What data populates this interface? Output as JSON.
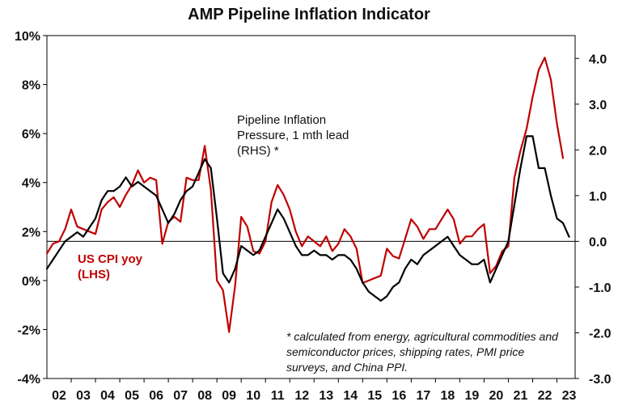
{
  "chart_data": {
    "type": "line",
    "title": "AMP Pipeline Inflation Indicator",
    "x_ticks": [
      "02",
      "03",
      "04",
      "05",
      "06",
      "07",
      "08",
      "09",
      "10",
      "11",
      "12",
      "13",
      "14",
      "15",
      "16",
      "17",
      "18",
      "19",
      "20",
      "21",
      "22",
      "23"
    ],
    "x_range": [
      2002.0,
      2023.75
    ],
    "y_left": {
      "range": [
        -4,
        10
      ],
      "ticks": [
        -4,
        -2,
        0,
        2,
        4,
        6,
        8,
        10
      ],
      "tick_labels": [
        "-4%",
        "-2%",
        "0%",
        "2%",
        "4%",
        "6%",
        "8%",
        "10%"
      ]
    },
    "y_right": {
      "range": [
        -3.0,
        4.5
      ],
      "ticks": [
        -3.0,
        -2.0,
        -1.0,
        0.0,
        1.0,
        2.0,
        3.0,
        4.0
      ],
      "tick_labels": [
        "-3.0",
        "-2.0",
        "-1.0",
        "0.0",
        "1.0",
        "2.0",
        "3.0",
        "4.0"
      ]
    },
    "grid": false,
    "series": [
      {
        "name": "US CPI yoy (LHS)",
        "axis": "left",
        "color": "#c00000",
        "x": [
          2002.0,
          2002.25,
          2002.5,
          2002.75,
          2003.0,
          2003.25,
          2003.5,
          2003.75,
          2004.0,
          2004.25,
          2004.5,
          2004.75,
          2005.0,
          2005.25,
          2005.5,
          2005.75,
          2006.0,
          2006.25,
          2006.5,
          2006.75,
          2007.0,
          2007.25,
          2007.5,
          2007.75,
          2008.0,
          2008.25,
          2008.5,
          2008.75,
          2009.0,
          2009.25,
          2009.5,
          2009.75,
          2010.0,
          2010.25,
          2010.5,
          2010.75,
          2011.0,
          2011.25,
          2011.5,
          2011.75,
          2012.0,
          2012.25,
          2012.5,
          2012.75,
          2013.0,
          2013.25,
          2013.5,
          2013.75,
          2014.0,
          2014.25,
          2014.5,
          2014.75,
          2015.0,
          2015.25,
          2015.5,
          2015.75,
          2016.0,
          2016.25,
          2016.5,
          2016.75,
          2017.0,
          2017.25,
          2017.5,
          2017.75,
          2018.0,
          2018.25,
          2018.5,
          2018.75,
          2019.0,
          2019.25,
          2019.5,
          2019.75,
          2020.0,
          2020.25,
          2020.5,
          2020.75,
          2021.0,
          2021.25,
          2021.5,
          2021.75,
          2022.0,
          2022.25,
          2022.5,
          2022.75,
          2023.0,
          2023.25
        ],
        "values": [
          1.1,
          1.5,
          1.6,
          2.1,
          2.9,
          2.2,
          2.1,
          2.0,
          1.9,
          2.9,
          3.2,
          3.4,
          3.0,
          3.5,
          3.9,
          4.5,
          4.0,
          4.2,
          4.1,
          1.5,
          2.4,
          2.6,
          2.4,
          4.2,
          4.1,
          4.1,
          5.5,
          3.7,
          0.0,
          -0.4,
          -2.1,
          -0.2,
          2.6,
          2.2,
          1.2,
          1.1,
          1.6,
          3.2,
          3.9,
          3.5,
          2.9,
          2.0,
          1.4,
          1.8,
          1.6,
          1.4,
          1.8,
          1.2,
          1.5,
          2.1,
          1.8,
          1.3,
          -0.1,
          0.0,
          0.1,
          0.2,
          1.3,
          1.0,
          0.9,
          1.7,
          2.5,
          2.2,
          1.7,
          2.1,
          2.1,
          2.5,
          2.9,
          2.5,
          1.5,
          1.8,
          1.8,
          2.1,
          2.3,
          0.3,
          0.6,
          1.2,
          1.4,
          4.2,
          5.3,
          6.2,
          7.5,
          8.6,
          9.1,
          8.2,
          6.4,
          5.0
        ]
      },
      {
        "name": "Pipeline Inflation Pressure, 1 mth lead (RHS) *",
        "axis": "right",
        "color": "#000000",
        "x": [
          2002.0,
          2002.25,
          2002.5,
          2002.75,
          2003.0,
          2003.25,
          2003.5,
          2003.75,
          2004.0,
          2004.25,
          2004.5,
          2004.75,
          2005.0,
          2005.25,
          2005.5,
          2005.75,
          2006.0,
          2006.25,
          2006.5,
          2006.75,
          2007.0,
          2007.25,
          2007.5,
          2007.75,
          2008.0,
          2008.25,
          2008.5,
          2008.75,
          2009.0,
          2009.25,
          2009.5,
          2009.75,
          2010.0,
          2010.25,
          2010.5,
          2010.75,
          2011.0,
          2011.25,
          2011.5,
          2011.75,
          2012.0,
          2012.25,
          2012.5,
          2012.75,
          2013.0,
          2013.25,
          2013.5,
          2013.75,
          2014.0,
          2014.25,
          2014.5,
          2014.75,
          2015.0,
          2015.25,
          2015.5,
          2015.75,
          2016.0,
          2016.25,
          2016.5,
          2016.75,
          2017.0,
          2017.25,
          2017.5,
          2017.75,
          2018.0,
          2018.25,
          2018.5,
          2018.75,
          2019.0,
          2019.25,
          2019.5,
          2019.75,
          2020.0,
          2020.25,
          2020.5,
          2020.75,
          2021.0,
          2021.25,
          2021.5,
          2021.75,
          2022.0,
          2022.25,
          2022.5,
          2022.75,
          2023.0,
          2023.25,
          2023.5
        ],
        "values": [
          -0.6,
          -0.4,
          -0.2,
          0.0,
          0.1,
          0.2,
          0.1,
          0.3,
          0.5,
          0.9,
          1.1,
          1.1,
          1.2,
          1.4,
          1.2,
          1.3,
          1.2,
          1.1,
          1.0,
          0.7,
          0.4,
          0.6,
          0.9,
          1.1,
          1.2,
          1.5,
          1.8,
          1.6,
          0.5,
          -0.7,
          -0.9,
          -0.6,
          -0.1,
          -0.2,
          -0.3,
          -0.2,
          0.1,
          0.4,
          0.7,
          0.5,
          0.2,
          -0.1,
          -0.3,
          -0.3,
          -0.2,
          -0.3,
          -0.3,
          -0.4,
          -0.3,
          -0.3,
          -0.4,
          -0.6,
          -0.9,
          -1.1,
          -1.2,
          -1.3,
          -1.2,
          -1.0,
          -0.9,
          -0.6,
          -0.4,
          -0.5,
          -0.3,
          -0.2,
          -0.1,
          0.0,
          0.1,
          -0.1,
          -0.3,
          -0.4,
          -0.5,
          -0.5,
          -0.4,
          -0.9,
          -0.6,
          -0.3,
          0.0,
          0.8,
          1.6,
          2.3,
          2.3,
          1.6,
          1.6,
          1.0,
          0.5,
          0.4,
          0.1
        ]
      }
    ],
    "annotations": {
      "cpi_label": [
        "US CPI yoy",
        "(LHS)"
      ],
      "pipeline_label": [
        "Pipeline Inflation",
        "Pressure, 1 mth lead",
        "(RHS) *"
      ],
      "footnote": [
        "* calculated from energy, agricultural commodities and",
        "semiconductor prices, shipping rates, PMI price",
        "surveys, and China PPI."
      ]
    }
  }
}
